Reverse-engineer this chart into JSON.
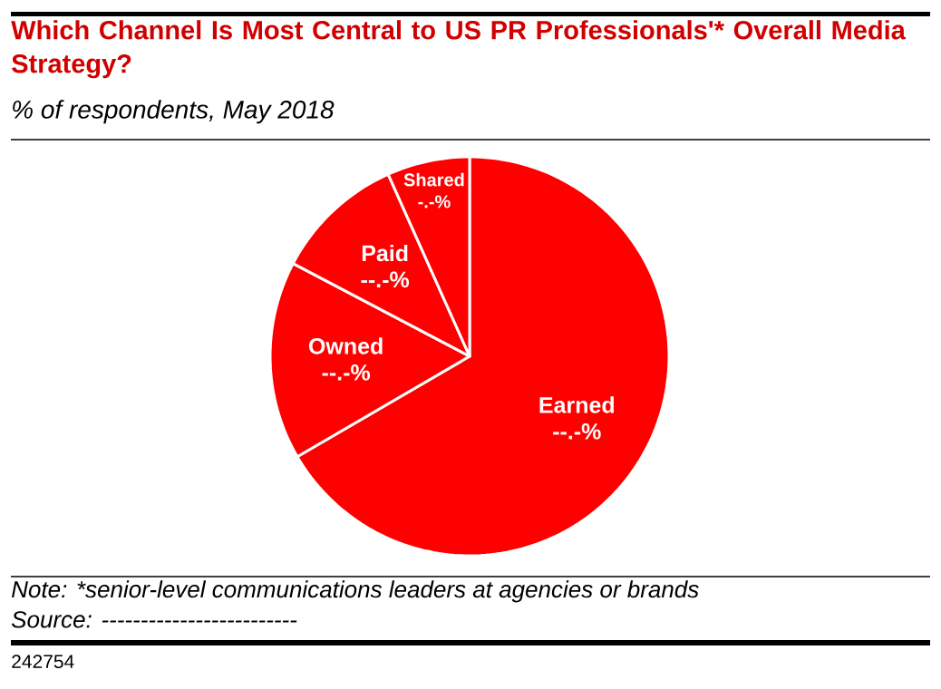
{
  "chart_data": {
    "type": "pie",
    "title": "Which Channel Is Most Central to US PR Professionals'* Overall Media Strategy?",
    "subtitle": "% of respondents, May 2018",
    "categories": [
      "Earned",
      "Owned",
      "Paid",
      "Shared"
    ],
    "values": [
      66.6,
      16.1,
      10.6,
      6.7
    ],
    "colors": [
      "#ff0000",
      "#ff0000",
      "#ff0000",
      "#ff0000"
    ],
    "value_labels": [
      "--.-%",
      "--.-%",
      "--.-%",
      "-.-%"
    ],
    "annotations": [
      "Note: *senior-level communications leaders at agencies or brands",
      "Source: -------------------------",
      "242754"
    ]
  }
}
